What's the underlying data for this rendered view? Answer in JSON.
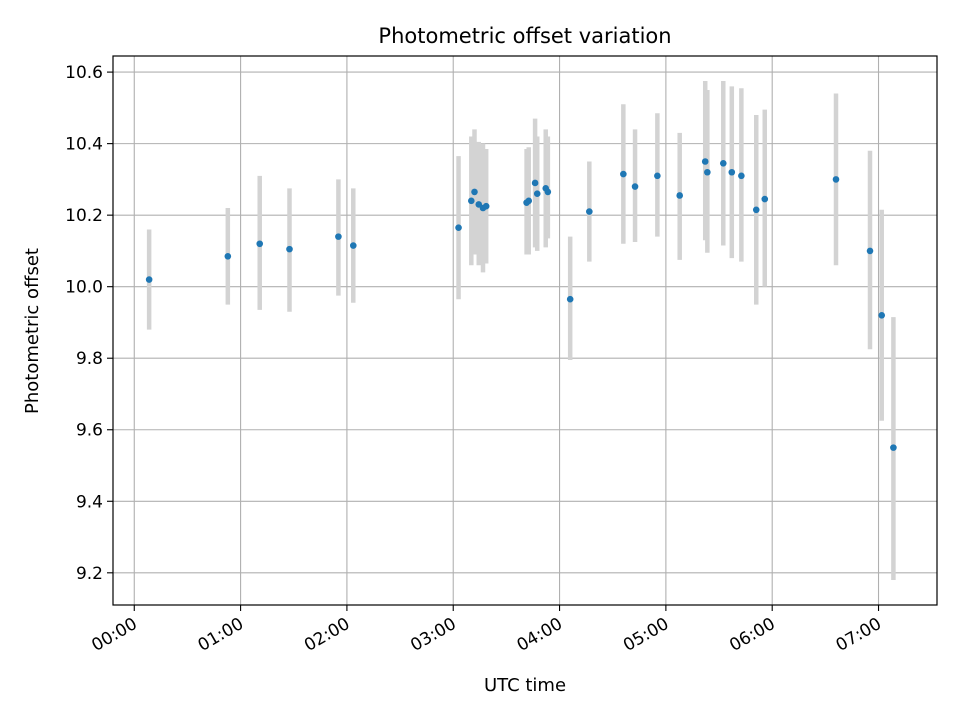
{
  "chart_data": {
    "type": "scatter",
    "title": "Photometric offset variation",
    "xlabel": "UTC time",
    "ylabel": "Photometric offset",
    "x_unit": "hours UTC",
    "xlim": [
      -0.2,
      7.55
    ],
    "ylim": [
      9.11,
      10.645
    ],
    "grid": true,
    "x_ticks": [
      {
        "value": 0,
        "label": "00:00"
      },
      {
        "value": 1,
        "label": "01:00"
      },
      {
        "value": 2,
        "label": "02:00"
      },
      {
        "value": 3,
        "label": "03:00"
      },
      {
        "value": 4,
        "label": "04:00"
      },
      {
        "value": 5,
        "label": "05:00"
      },
      {
        "value": 6,
        "label": "06:00"
      },
      {
        "value": 7,
        "label": "07:00"
      }
    ],
    "y_ticks": [
      {
        "value": 9.2,
        "label": "9.2"
      },
      {
        "value": 9.4,
        "label": "9.4"
      },
      {
        "value": 9.6,
        "label": "9.6"
      },
      {
        "value": 9.8,
        "label": "9.8"
      },
      {
        "value": 10.0,
        "label": "10.0"
      },
      {
        "value": 10.2,
        "label": "10.2"
      },
      {
        "value": 10.4,
        "label": "10.4"
      },
      {
        "value": 10.6,
        "label": "10.6"
      }
    ],
    "marker_color": "#1f77b4",
    "errorbar_color": "#d3d3d3",
    "points": [
      {
        "x": 0.14,
        "y": 10.02,
        "lo": 9.88,
        "hi": 10.16
      },
      {
        "x": 0.88,
        "y": 10.085,
        "lo": 9.95,
        "hi": 10.22
      },
      {
        "x": 1.18,
        "y": 10.12,
        "lo": 9.935,
        "hi": 10.31
      },
      {
        "x": 1.46,
        "y": 10.105,
        "lo": 9.93,
        "hi": 10.275
      },
      {
        "x": 1.92,
        "y": 10.14,
        "lo": 9.975,
        "hi": 10.3
      },
      {
        "x": 2.06,
        "y": 10.115,
        "lo": 9.955,
        "hi": 10.275
      },
      {
        "x": 3.05,
        "y": 10.165,
        "lo": 9.965,
        "hi": 10.365
      },
      {
        "x": 3.17,
        "y": 10.24,
        "lo": 10.06,
        "hi": 10.42
      },
      {
        "x": 3.2,
        "y": 10.265,
        "lo": 10.09,
        "hi": 10.44
      },
      {
        "x": 3.24,
        "y": 10.23,
        "lo": 10.06,
        "hi": 10.405
      },
      {
        "x": 3.28,
        "y": 10.22,
        "lo": 10.04,
        "hi": 10.4
      },
      {
        "x": 3.31,
        "y": 10.225,
        "lo": 10.065,
        "hi": 10.385
      },
      {
        "x": 3.69,
        "y": 10.235,
        "lo": 10.09,
        "hi": 10.385
      },
      {
        "x": 3.71,
        "y": 10.24,
        "lo": 10.09,
        "hi": 10.39
      },
      {
        "x": 3.77,
        "y": 10.29,
        "lo": 10.11,
        "hi": 10.47
      },
      {
        "x": 3.79,
        "y": 10.26,
        "lo": 10.1,
        "hi": 10.42
      },
      {
        "x": 3.87,
        "y": 10.275,
        "lo": 10.11,
        "hi": 10.44
      },
      {
        "x": 3.89,
        "y": 10.265,
        "lo": 10.135,
        "hi": 10.42
      },
      {
        "x": 4.1,
        "y": 9.965,
        "lo": 9.795,
        "hi": 10.14
      },
      {
        "x": 4.28,
        "y": 10.21,
        "lo": 10.07,
        "hi": 10.35
      },
      {
        "x": 4.6,
        "y": 10.315,
        "lo": 10.12,
        "hi": 10.51
      },
      {
        "x": 4.71,
        "y": 10.28,
        "lo": 10.125,
        "hi": 10.44
      },
      {
        "x": 4.92,
        "y": 10.31,
        "lo": 10.14,
        "hi": 10.485
      },
      {
        "x": 5.13,
        "y": 10.255,
        "lo": 10.075,
        "hi": 10.43
      },
      {
        "x": 5.37,
        "y": 10.35,
        "lo": 10.13,
        "hi": 10.575
      },
      {
        "x": 5.39,
        "y": 10.32,
        "lo": 10.095,
        "hi": 10.55
      },
      {
        "x": 5.54,
        "y": 10.345,
        "lo": 10.115,
        "hi": 10.575
      },
      {
        "x": 5.62,
        "y": 10.32,
        "lo": 10.08,
        "hi": 10.56
      },
      {
        "x": 5.71,
        "y": 10.31,
        "lo": 10.07,
        "hi": 10.555
      },
      {
        "x": 5.85,
        "y": 10.215,
        "lo": 9.95,
        "hi": 10.48
      },
      {
        "x": 5.93,
        "y": 10.245,
        "lo": 10.0,
        "hi": 10.495
      },
      {
        "x": 6.6,
        "y": 10.3,
        "lo": 10.06,
        "hi": 10.54
      },
      {
        "x": 6.92,
        "y": 10.1,
        "lo": 9.825,
        "hi": 10.38
      },
      {
        "x": 7.03,
        "y": 9.92,
        "lo": 9.625,
        "hi": 10.215
      },
      {
        "x": 7.14,
        "y": 9.55,
        "lo": 9.18,
        "hi": 9.915
      }
    ]
  }
}
